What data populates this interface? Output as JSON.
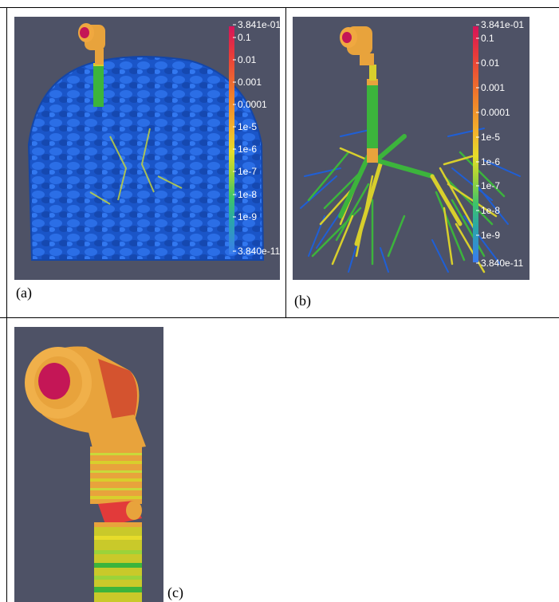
{
  "figure": {
    "panels": [
      {
        "id": "a",
        "caption": "(a)"
      },
      {
        "id": "b",
        "caption": "(b)"
      },
      {
        "id": "c",
        "caption": "(c)"
      }
    ],
    "colorbar": {
      "max_label": "3.841e-01",
      "min_label": "3.840e-11",
      "ticks": [
        "0.1",
        "0.01",
        "0.001",
        "0.0001",
        "1e-5",
        "1e-6",
        "1e-7",
        "1e-8",
        "1e-9"
      ],
      "colormap": [
        "#d4145a",
        "#e83a3a",
        "#f07d2a",
        "#f2b32c",
        "#e6dc2a",
        "#9bd33a",
        "#3ec46a",
        "#2aa7a8",
        "#2d8fe0",
        "#3a7bf0"
      ]
    },
    "colors": {
      "background": "#4e5266",
      "tissue_blue": "#1f5fd6",
      "airway_green": "#3cb43c",
      "airway_yellow": "#d8cf2c",
      "airway_orange": "#e8a33c",
      "mouth_red": "#c41656"
    }
  }
}
